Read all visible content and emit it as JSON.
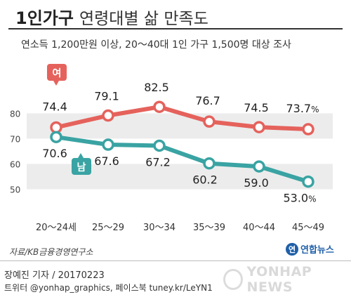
{
  "header": {
    "title_bold": "1인가구",
    "title_light": "연령대별 삶 만족도",
    "subtitle": "연소득 1,200만원 이상, 20～40대 1인 가구 1,500명 대상 조사"
  },
  "chart_data": {
    "type": "line",
    "categories": [
      "20～24세",
      "25～29",
      "30～34",
      "35～39",
      "40～44",
      "45～49"
    ],
    "series": [
      {
        "name": "여",
        "values": [
          74.4,
          79.1,
          82.5,
          76.7,
          74.5,
          73.7
        ],
        "labels": [
          "74.4",
          "79.1",
          "82.5",
          "76.7",
          "74.5",
          "73.7"
        ],
        "color": "#e5625c"
      },
      {
        "name": "남",
        "values": [
          70.6,
          67.6,
          67.2,
          60.2,
          59.0,
          53.0
        ],
        "labels": [
          "70.6",
          "67.6",
          "67.2",
          "60.2",
          "59.0",
          "53.0"
        ],
        "color": "#3aa3a3"
      }
    ],
    "yticks": [
      50,
      60,
      70,
      80
    ],
    "ylim": [
      46,
      87
    ],
    "value_unit": "%",
    "grid": "alternating bands"
  },
  "footer": {
    "source": "자료/KB금융경영연구소",
    "logo_text": "연합뉴스",
    "logo_mark": "연",
    "author": "장예진 기자 / 20170223",
    "social": "트위터 @yonhap_graphics, 페이스북 tuney.kr/LeYN1",
    "watermark": "YONHAP NEWS"
  }
}
